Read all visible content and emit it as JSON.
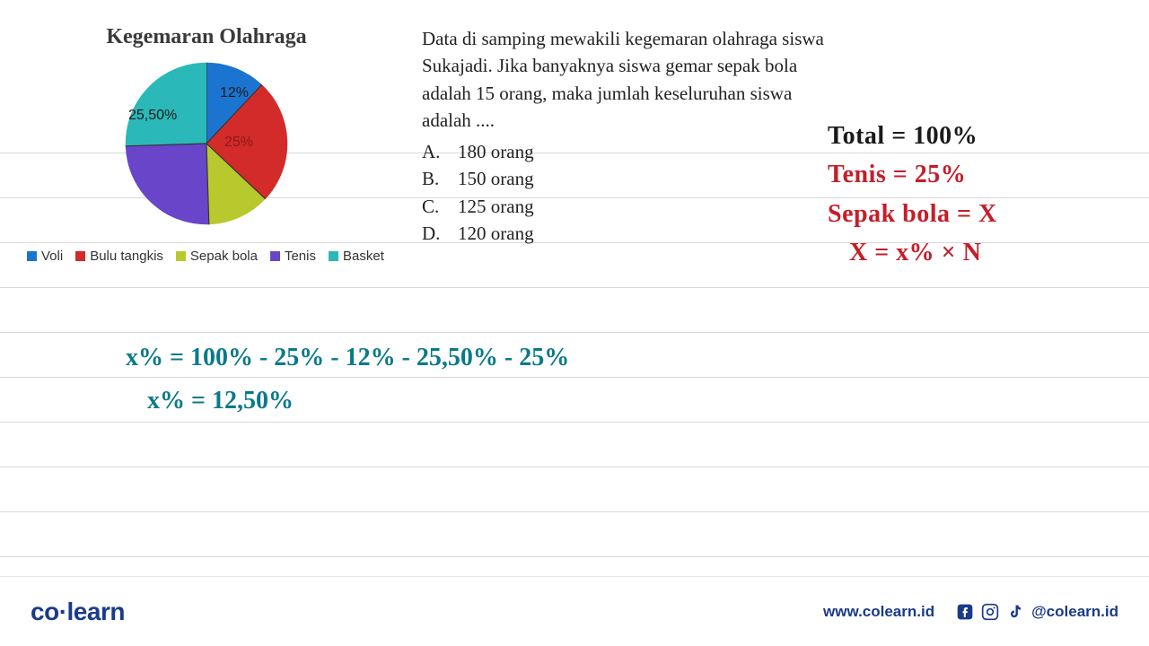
{
  "chart": {
    "title": "Kegemaran Olahraga",
    "type": "pie",
    "segments": [
      {
        "key": "voli",
        "label": "Voli",
        "value": 12,
        "color": "#1b75d0",
        "label_text": "12%"
      },
      {
        "key": "bulu_tangkis",
        "label": "Bulu tangkis",
        "value": 25,
        "color": "#d32a2a",
        "label_text": "25%"
      },
      {
        "key": "sepak_bola",
        "label": "Sepak bola",
        "value": 12.5,
        "color": "#b8c92e",
        "label_text": ""
      },
      {
        "key": "tenis",
        "label": "Tenis",
        "value": 25,
        "color": "#6845c9",
        "label_text": ""
      },
      {
        "key": "basket",
        "label": "Basket",
        "value": 25.5,
        "color": "#2bb8b8",
        "label_text": "25,50%"
      }
    ],
    "label_fontsize": 16,
    "title_fontsize": 24
  },
  "question": {
    "text": "Data di samping mewakili kegemaran olahraga siswa Sukajadi. Jika banyaknya siswa gemar sepak bola adalah 15 orang, maka jumlah keseluruhan siswa adalah ....",
    "options": [
      {
        "letter": "A.",
        "text": "180 orang"
      },
      {
        "letter": "B.",
        "text": "150 orang"
      },
      {
        "letter": "C.",
        "text": "125 orang"
      },
      {
        "letter": "D.",
        "text": "120 orang"
      }
    ]
  },
  "handwriting_right": {
    "line1": "Total = 100%",
    "line2": "Tenis = 25%",
    "line3": "Sepak bola = X",
    "line4": "X = x% × N"
  },
  "handwriting_bottom": {
    "line1": "x% = 100% - 25% - 12% - 25,50% - 25%",
    "line2": "x% = 12,50%"
  },
  "footer": {
    "logo_primary": "co",
    "logo_secondary": "learn",
    "url": "www.colearn.id",
    "handle": "@colearn.id"
  },
  "notebook_line_positions": [
    170,
    220,
    270,
    320,
    370,
    420,
    470,
    520,
    570,
    620
  ],
  "colors": {
    "background": "#ffffff",
    "line": "#d8d8d8",
    "text": "#222222",
    "brand": "#1a3a8a",
    "hw_teal": "#0a7a8a",
    "hw_red": "#c41e2a",
    "hw_black": "#1a1a1a"
  }
}
